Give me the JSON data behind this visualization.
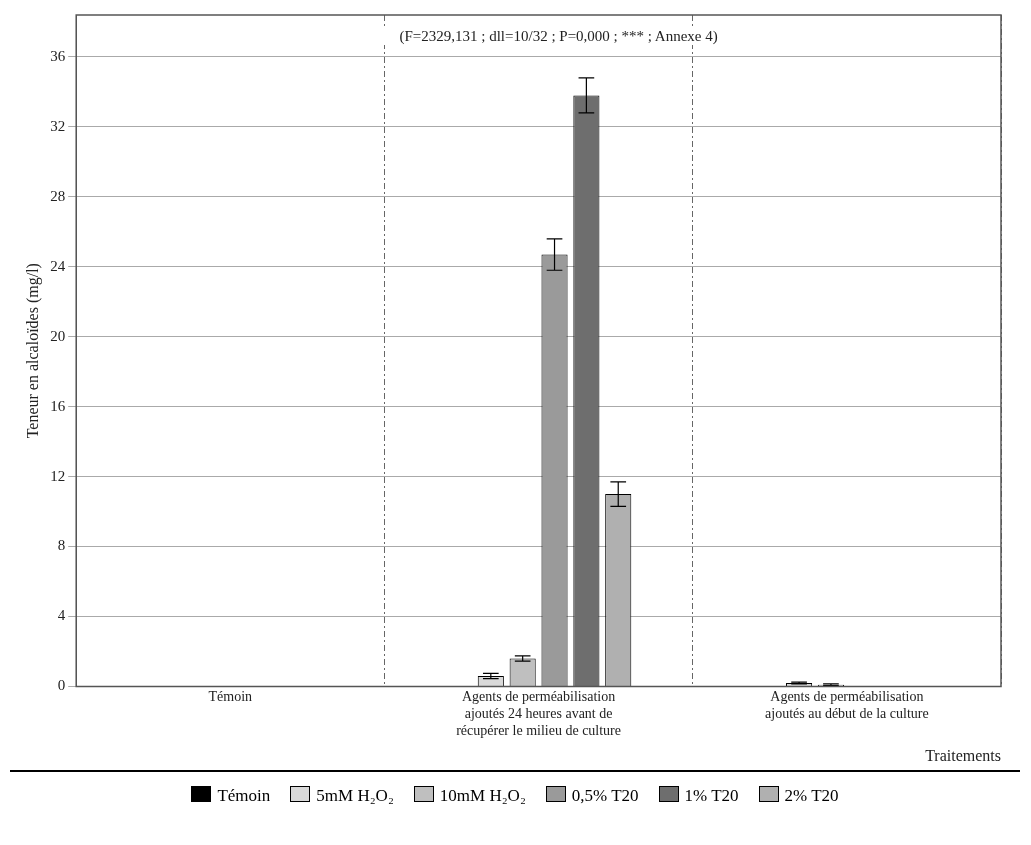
{
  "chart_data": {
    "type": "bar",
    "ylabel": "Teneur en alcaloïdes (mg/l)",
    "xlabel": "Traitements",
    "annotations": [
      "(F=2329,131 ; dll=10/32 ; P=0,000 ; *** ; Annexe 4)"
    ],
    "categories": [
      "Témoin",
      "Agents de perméabilisation ajoutés 24 heures avant de récupérer le milieu de culture",
      "Agents de perméabilisation ajoutés au début de la culture"
    ],
    "ylim": [
      0,
      38.4
    ],
    "yticks": [
      0,
      4,
      8,
      12,
      16,
      20,
      24,
      28,
      32,
      36
    ],
    "grid": true,
    "legend": "bottom",
    "series": [
      {
        "name": "Témoin",
        "color": "#000000",
        "values": [
          0,
          null,
          null
        ],
        "errors": [
          null,
          null,
          null
        ]
      },
      {
        "name": "5mM H₂O₂",
        "color": "#d9d9d9",
        "values": [
          null,
          0.6,
          0.2
        ],
        "errors": [
          null,
          0.15,
          0.05
        ]
      },
      {
        "name": "10mM H₂O₂",
        "color": "#bfbfbf",
        "values": [
          null,
          1.6,
          0.1
        ],
        "errors": [
          null,
          0.15,
          0.05
        ]
      },
      {
        "name": "0,5% T20",
        "color": "#9a9a9a",
        "values": [
          null,
          24.7,
          null
        ],
        "errors": [
          null,
          0.9,
          null
        ]
      },
      {
        "name": "1% T20",
        "color": "#6e6e6e",
        "values": [
          null,
          33.8,
          null
        ],
        "errors": [
          null,
          1.0,
          null
        ]
      },
      {
        "name": "2% T20",
        "color": "#b0b0b0",
        "values": [
          null,
          11.0,
          null
        ],
        "errors": [
          null,
          0.7,
          null
        ]
      }
    ]
  }
}
